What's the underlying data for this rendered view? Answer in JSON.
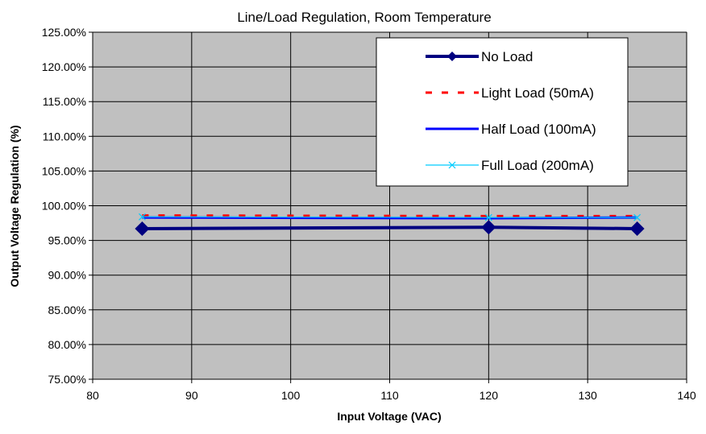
{
  "chart_data": {
    "type": "line",
    "title": "Line/Load Regulation, Room Temperature",
    "xlabel": "Input Voltage (VAC)",
    "ylabel": "Output Voltage Regulation (%)",
    "xlim": [
      80,
      140
    ],
    "ylim": [
      0.75,
      1.25
    ],
    "x_ticks": [
      80,
      90,
      100,
      110,
      120,
      130,
      140
    ],
    "x_tick_labels": [
      "80",
      "90",
      "100",
      "110",
      "120",
      "130",
      "140"
    ],
    "y_ticks": [
      0.75,
      0.8,
      0.85,
      0.9,
      0.95,
      1.0,
      1.05,
      1.1,
      1.15,
      1.2,
      1.25
    ],
    "y_tick_labels": [
      "75.00%",
      "80.00%",
      "85.00%",
      "90.00%",
      "95.00%",
      "100.00%",
      "105.00%",
      "110.00%",
      "115.00%",
      "120.00%",
      "125.00%"
    ],
    "grid": true,
    "legend_position": "top-right",
    "plot_background": "#c0c0c0",
    "series": [
      {
        "name": "No Load",
        "x": [
          85,
          120,
          135
        ],
        "y": [
          0.967,
          0.969,
          0.967
        ],
        "color": "#000080",
        "style": "solid-thick",
        "marker": "diamond"
      },
      {
        "name": "Light Load (50mA)",
        "x": [
          85,
          120,
          135
        ],
        "y": [
          0.986,
          0.985,
          0.985
        ],
        "color": "#ff0000",
        "style": "dashed",
        "marker": "none"
      },
      {
        "name": "Half Load (100mA)",
        "x": [
          85,
          120,
          135
        ],
        "y": [
          0.983,
          0.982,
          0.983
        ],
        "color": "#0000ff",
        "style": "solid",
        "marker": "none"
      },
      {
        "name": "Full Load (200mA)",
        "x": [
          85,
          120,
          135
        ],
        "y": [
          0.984,
          0.983,
          0.983
        ],
        "color": "#00ccff",
        "style": "solid-thin",
        "marker": "x"
      }
    ]
  }
}
